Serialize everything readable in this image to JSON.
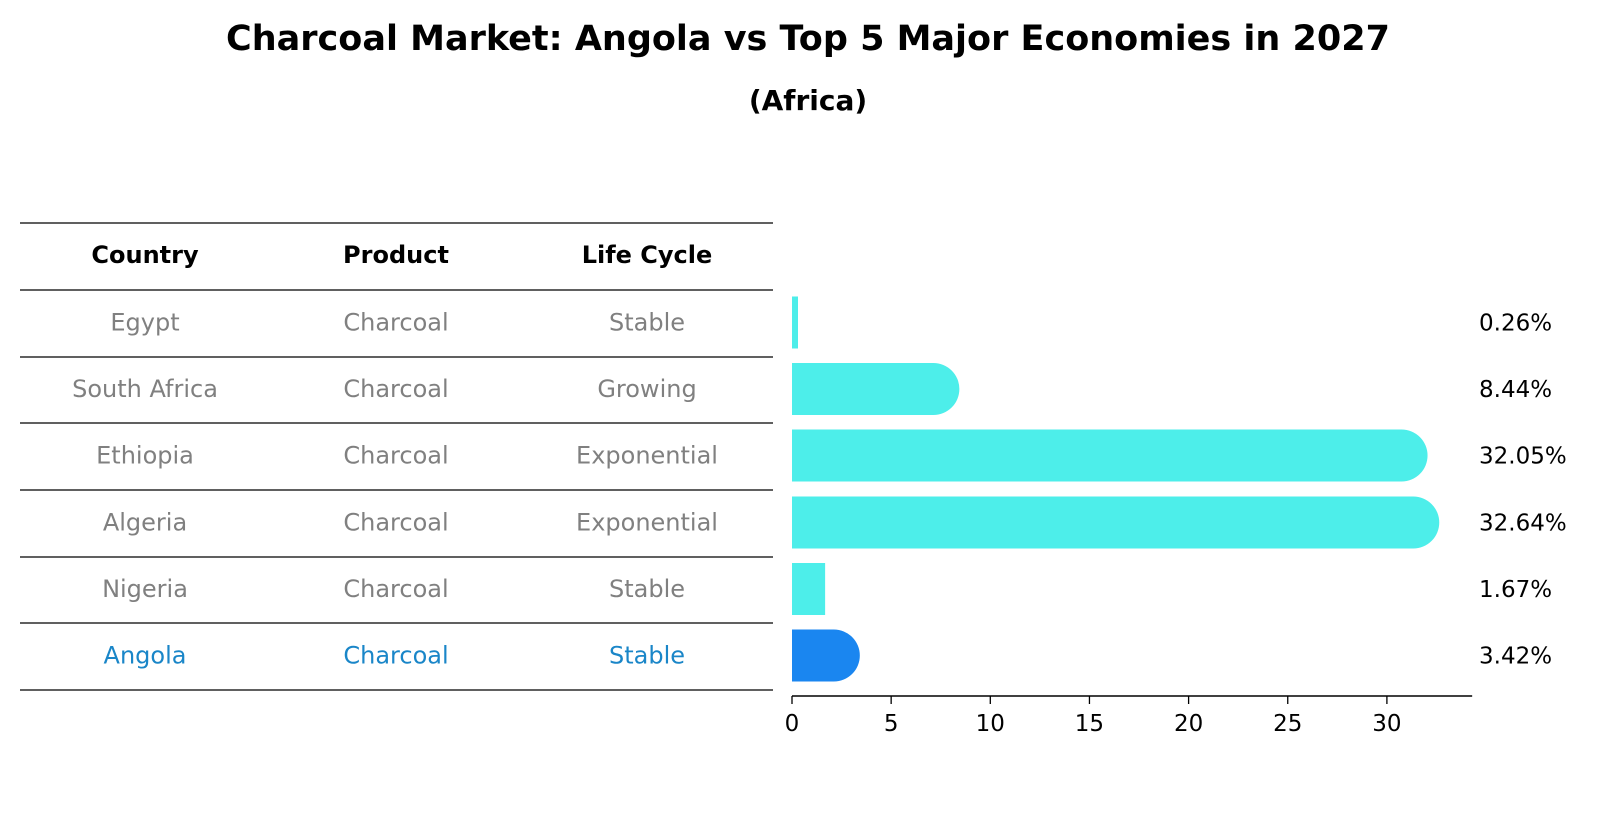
{
  "chart_data": {
    "type": "bar",
    "orientation": "horizontal",
    "title": "Charcoal Market: Angola vs Top 5 Major Economies in 2027",
    "subtitle": "(Africa)",
    "table": {
      "columns": [
        "Country",
        "Product",
        "Life Cycle"
      ],
      "rows": [
        [
          "Egypt",
          "Charcoal",
          "Stable"
        ],
        [
          "South Africa",
          "Charcoal",
          "Growing"
        ],
        [
          "Ethiopia",
          "Charcoal",
          "Exponential"
        ],
        [
          "Algeria",
          "Charcoal",
          "Exponential"
        ],
        [
          "Nigeria",
          "Charcoal",
          "Stable"
        ],
        [
          "Angola",
          "Charcoal",
          "Stable"
        ]
      ]
    },
    "categories": [
      "Egypt",
      "South Africa",
      "Ethiopia",
      "Algeria",
      "Nigeria",
      "Angola"
    ],
    "values": [
      0.26,
      8.44,
      32.05,
      32.64,
      1.67,
      3.42
    ],
    "value_labels": [
      "0.26%",
      "8.44%",
      "32.05%",
      "32.64%",
      "1.67%",
      "3.42%"
    ],
    "highlight": "Angola",
    "xticks": [
      0,
      5,
      10,
      15,
      20,
      25,
      30
    ],
    "xlim": [
      0,
      34.3
    ],
    "colors": {
      "bar": "#4deeea",
      "highlight": "#1a86f0",
      "row_text": "#808080",
      "highlight_text": "#1a86c8"
    }
  }
}
